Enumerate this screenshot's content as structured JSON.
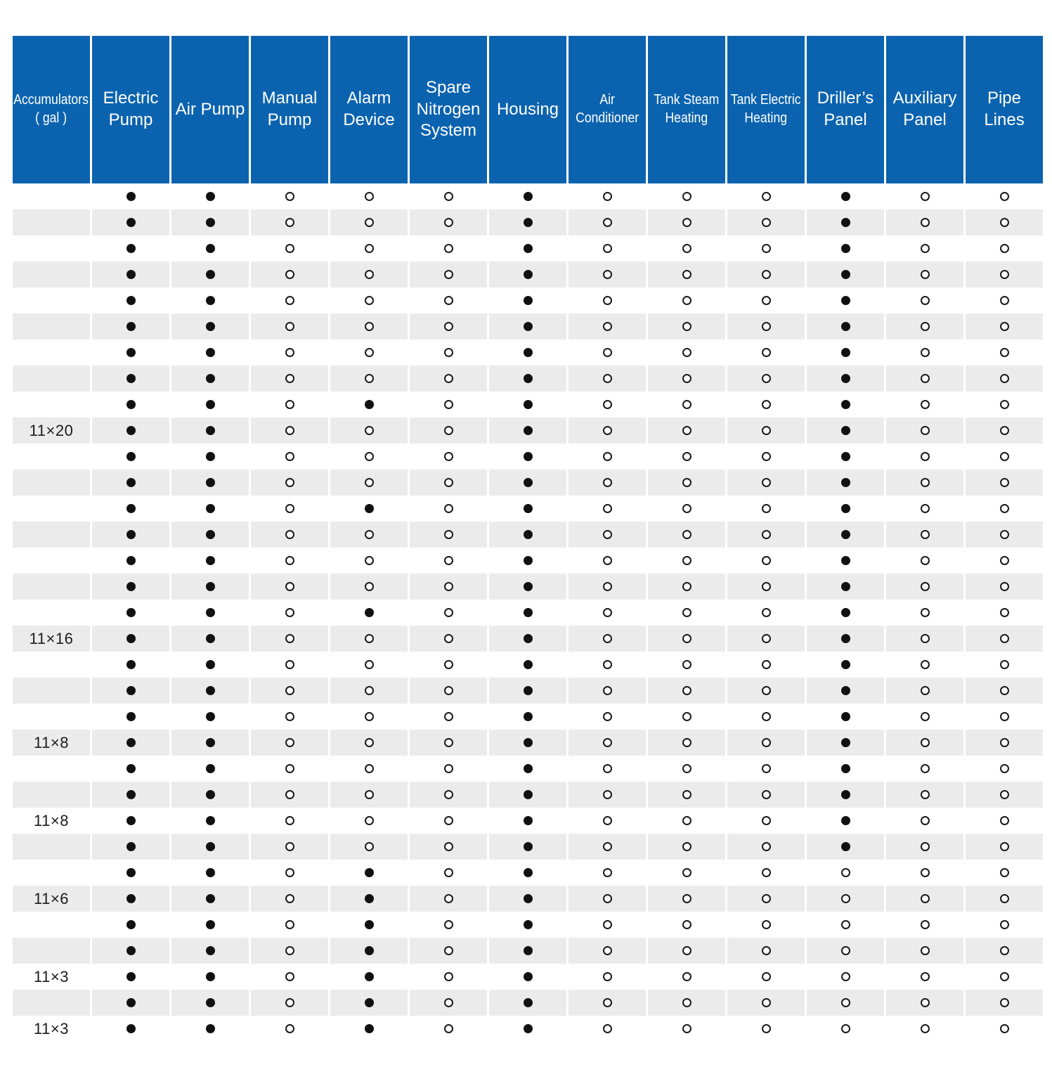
{
  "colors": {
    "header_blue": "#0B63AF",
    "row_gray": "#EBEBEB",
    "row_white": "#FFFFFF",
    "dot_black": "#111111"
  },
  "chart_data": {
    "type": "table",
    "title": "",
    "symbols": {
      "filled": "●",
      "hollow": "○"
    },
    "columns": [
      {
        "id": "accumulators",
        "label": "Accumulators\n( gal )",
        "small": true
      },
      {
        "id": "electric-pump",
        "label": "Electric\nPump",
        "small": false
      },
      {
        "id": "air-pump",
        "label": "Air Pump",
        "small": false
      },
      {
        "id": "manual-pump",
        "label": "Manual\nPump",
        "small": false
      },
      {
        "id": "alarm-device",
        "label": "Alarm\nDevice",
        "small": false
      },
      {
        "id": "spare-nitrogen-system",
        "label": "Spare\nNitrogen\nSystem",
        "small": false
      },
      {
        "id": "housing",
        "label": "Housing",
        "small": false
      },
      {
        "id": "air-conditioner",
        "label": "Air\nConditioner",
        "small": true
      },
      {
        "id": "tank-steam-heating",
        "label": "Tank Steam\nHeating",
        "small": true
      },
      {
        "id": "tank-electric-heating",
        "label": "Tank Electric\nHeating",
        "small": true
      },
      {
        "id": "drillers-panel",
        "label": "Driller’s\nPanel",
        "small": false
      },
      {
        "id": "auxiliary-panel",
        "label": "Auxiliary\nPanel",
        "small": false
      },
      {
        "id": "pipe-lines",
        "label": "Pipe\nLines",
        "small": false
      }
    ],
    "rows": [
      {
        "label": "",
        "cells": [
          1,
          1,
          0,
          0,
          0,
          1,
          0,
          0,
          0,
          1,
          0,
          0
        ]
      },
      {
        "label": "",
        "cells": [
          1,
          1,
          0,
          0,
          0,
          1,
          0,
          0,
          0,
          1,
          0,
          0
        ]
      },
      {
        "label": "",
        "cells": [
          1,
          1,
          0,
          0,
          0,
          1,
          0,
          0,
          0,
          1,
          0,
          0
        ]
      },
      {
        "label": "",
        "cells": [
          1,
          1,
          0,
          0,
          0,
          1,
          0,
          0,
          0,
          1,
          0,
          0
        ]
      },
      {
        "label": "",
        "cells": [
          1,
          1,
          0,
          0,
          0,
          1,
          0,
          0,
          0,
          1,
          0,
          0
        ]
      },
      {
        "label": "",
        "cells": [
          1,
          1,
          0,
          0,
          0,
          1,
          0,
          0,
          0,
          1,
          0,
          0
        ]
      },
      {
        "label": "",
        "cells": [
          1,
          1,
          0,
          0,
          0,
          1,
          0,
          0,
          0,
          1,
          0,
          0
        ]
      },
      {
        "label": "",
        "cells": [
          1,
          1,
          0,
          0,
          0,
          1,
          0,
          0,
          0,
          1,
          0,
          0
        ]
      },
      {
        "label": "",
        "cells": [
          1,
          1,
          0,
          1,
          0,
          1,
          0,
          0,
          0,
          1,
          0,
          0
        ]
      },
      {
        "label": "11×20",
        "cells": [
          1,
          1,
          0,
          0,
          0,
          1,
          0,
          0,
          0,
          1,
          0,
          0
        ]
      },
      {
        "label": "",
        "cells": [
          1,
          1,
          0,
          0,
          0,
          1,
          0,
          0,
          0,
          1,
          0,
          0
        ]
      },
      {
        "label": "",
        "cells": [
          1,
          1,
          0,
          0,
          0,
          1,
          0,
          0,
          0,
          1,
          0,
          0
        ]
      },
      {
        "label": "",
        "cells": [
          1,
          1,
          0,
          1,
          0,
          1,
          0,
          0,
          0,
          1,
          0,
          0
        ]
      },
      {
        "label": "",
        "cells": [
          1,
          1,
          0,
          0,
          0,
          1,
          0,
          0,
          0,
          1,
          0,
          0
        ]
      },
      {
        "label": "",
        "cells": [
          1,
          1,
          0,
          0,
          0,
          1,
          0,
          0,
          0,
          1,
          0,
          0
        ]
      },
      {
        "label": "",
        "cells": [
          1,
          1,
          0,
          0,
          0,
          1,
          0,
          0,
          0,
          1,
          0,
          0
        ]
      },
      {
        "label": "",
        "cells": [
          1,
          1,
          0,
          1,
          0,
          1,
          0,
          0,
          0,
          1,
          0,
          0
        ]
      },
      {
        "label": "11×16",
        "cells": [
          1,
          1,
          0,
          0,
          0,
          1,
          0,
          0,
          0,
          1,
          0,
          0
        ]
      },
      {
        "label": "",
        "cells": [
          1,
          1,
          0,
          0,
          0,
          1,
          0,
          0,
          0,
          1,
          0,
          0
        ]
      },
      {
        "label": "",
        "cells": [
          1,
          1,
          0,
          0,
          0,
          1,
          0,
          0,
          0,
          1,
          0,
          0
        ]
      },
      {
        "label": "",
        "cells": [
          1,
          1,
          0,
          0,
          0,
          1,
          0,
          0,
          0,
          1,
          0,
          0
        ]
      },
      {
        "label": "11×8",
        "cells": [
          1,
          1,
          0,
          0,
          0,
          1,
          0,
          0,
          0,
          1,
          0,
          0
        ]
      },
      {
        "label": "",
        "cells": [
          1,
          1,
          0,
          0,
          0,
          1,
          0,
          0,
          0,
          1,
          0,
          0
        ]
      },
      {
        "label": "",
        "cells": [
          1,
          1,
          0,
          0,
          0,
          1,
          0,
          0,
          0,
          1,
          0,
          0
        ]
      },
      {
        "label": "11×8",
        "cells": [
          1,
          1,
          0,
          0,
          0,
          1,
          0,
          0,
          0,
          1,
          0,
          0
        ]
      },
      {
        "label": "",
        "cells": [
          1,
          1,
          0,
          0,
          0,
          1,
          0,
          0,
          0,
          1,
          0,
          0
        ]
      },
      {
        "label": "",
        "cells": [
          1,
          1,
          0,
          1,
          0,
          1,
          0,
          0,
          0,
          0,
          0,
          0
        ]
      },
      {
        "label": "11×6",
        "cells": [
          1,
          1,
          0,
          1,
          0,
          1,
          0,
          0,
          0,
          0,
          0,
          0
        ]
      },
      {
        "label": "",
        "cells": [
          1,
          1,
          0,
          1,
          0,
          1,
          0,
          0,
          0,
          0,
          0,
          0
        ]
      },
      {
        "label": "",
        "cells": [
          1,
          1,
          0,
          1,
          0,
          1,
          0,
          0,
          0,
          0,
          0,
          0
        ]
      },
      {
        "label": "11×3",
        "cells": [
          1,
          1,
          0,
          1,
          0,
          1,
          0,
          0,
          0,
          0,
          0,
          0
        ]
      },
      {
        "label": "",
        "cells": [
          1,
          1,
          0,
          1,
          0,
          1,
          0,
          0,
          0,
          0,
          0,
          0
        ]
      },
      {
        "label": "11×3",
        "cells": [
          1,
          1,
          0,
          1,
          0,
          1,
          0,
          0,
          0,
          0,
          0,
          0
        ]
      }
    ]
  }
}
